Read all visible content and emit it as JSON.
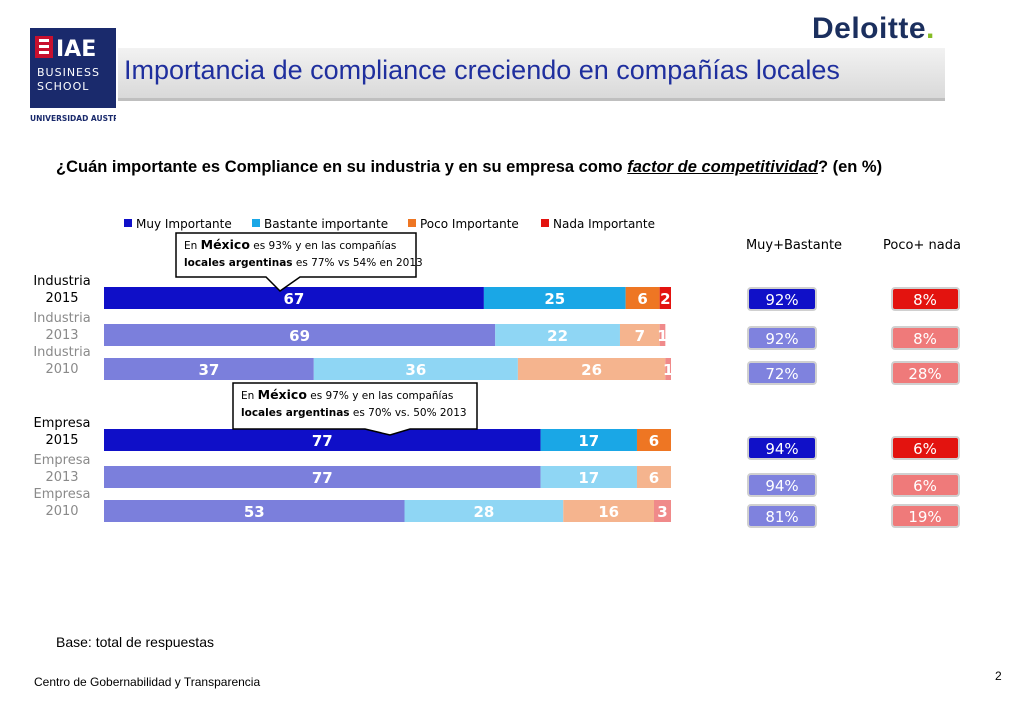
{
  "header": {
    "title": "Importancia de compliance creciendo en compañías locales",
    "brand": "Deloitte",
    "brand_dot": ".",
    "logo": {
      "line1": "IAE",
      "line2": "BUSINESS",
      "line3": "SCHOOL",
      "line4": "UNIVERSIDAD AUSTRAL"
    }
  },
  "question": {
    "pre": "¿Cuán importante es Compliance en su industria y en su empresa como ",
    "em": "factor de competitividad",
    "post": "? (en %)"
  },
  "base_note": "Base: total de respuestas",
  "footer": {
    "left": "Centro de Gobernabilidad y Transparencia",
    "page": "2"
  },
  "callouts": [
    {
      "pre": "En ",
      "bold": "México",
      "post": " es 93% y  en las compañías",
      "line2_bold": "locales argentinas",
      "line2_post": " es 77% vs 54% en 2013"
    },
    {
      "pre": "En ",
      "bold": "México",
      "post": " es 97% y en las compañías",
      "line2_bold": "locales argentinas",
      "line2_post": " es 70% vs. 50% 2013"
    }
  ],
  "colors": {
    "muy_2015": "#0f0fc8",
    "muy_prev": "#7b7fdc",
    "bastante_2015": "#1aa7e6",
    "bastante_prev": "#8fd6f4",
    "poco_2015": "#ee7623",
    "poco_prev": "#f5b48e",
    "nada_2015": "#e3130f",
    "nada_prev": "#f08a8a"
  },
  "chart_data": {
    "type": "bar",
    "orientation": "horizontal-stacked",
    "legend": [
      "Muy Importante",
      "Bastante importante",
      "Poco Importante",
      "Nada Importante"
    ],
    "categories": [
      "Industria 2015",
      "Industria 2013",
      "Industria 2010",
      "Empresa 2015",
      "Empresa 2013",
      "Empresa 2010"
    ],
    "series": [
      {
        "name": "Muy Importante",
        "values": [
          67,
          69,
          37,
          77,
          77,
          53
        ]
      },
      {
        "name": "Bastante importante",
        "values": [
          25,
          22,
          36,
          17,
          17,
          28
        ]
      },
      {
        "name": "Poco Importante",
        "values": [
          6,
          7,
          26,
          6,
          6,
          16
        ]
      },
      {
        "name": "Nada Importante",
        "values": [
          2,
          1,
          1,
          0,
          0,
          3
        ]
      }
    ],
    "summary_headers": [
      "Muy+Bastante",
      "Poco+ nada"
    ],
    "muy_bastante": [
      "92%",
      "92%",
      "72%",
      "94%",
      "94%",
      "81%"
    ],
    "poco_nada": [
      "8%",
      "8%",
      "28%",
      "6%",
      "6%",
      "19%"
    ]
  }
}
